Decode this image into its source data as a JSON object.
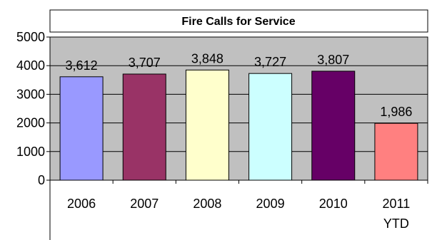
{
  "chart_data": {
    "type": "bar",
    "title": "Fire Calls for Service",
    "xlabel": "",
    "ylabel": "",
    "categories": [
      "2006",
      "2007",
      "2008",
      "2009",
      "2010",
      "2011\nYTD"
    ],
    "values": [
      3612,
      3707,
      3848,
      3727,
      3807,
      1986
    ],
    "data_labels": [
      "3,612",
      "3,707",
      "3,848",
      "3,727",
      "3,807",
      "1,986"
    ],
    "ylim": [
      0,
      5000
    ],
    "yticks": [
      0,
      1000,
      2000,
      3000,
      4000,
      5000
    ],
    "grid": true,
    "legend": "none",
    "plot_background": "#C0C0C0",
    "bar_colors": [
      "#9999FF",
      "#993366",
      "#FFFFCC",
      "#CCFFFF",
      "#660066",
      "#FF8080"
    ],
    "edge_color": "#000000"
  }
}
